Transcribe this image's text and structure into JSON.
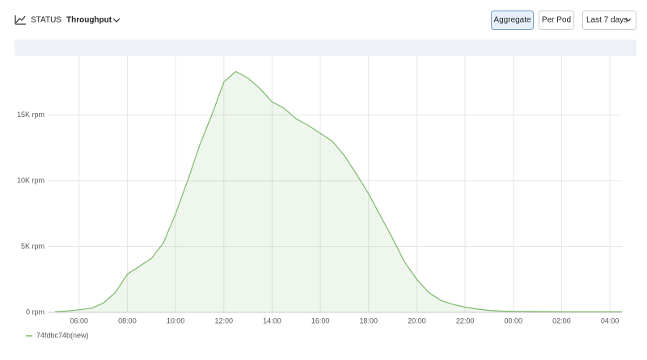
{
  "header": {
    "section": "STATUS",
    "metric": "Throughput",
    "buttons": [
      "Aggregate",
      "Per Pod"
    ],
    "range": "Last 7 days"
  },
  "chart_data": {
    "type": "area",
    "x": [
      5,
      5.5,
      6,
      6.5,
      7,
      7.5,
      8,
      8.5,
      9,
      9.5,
      10,
      10.5,
      11,
      11.5,
      12,
      12.5,
      13,
      13.5,
      14,
      14.5,
      15,
      15.5,
      16,
      16.5,
      17,
      17.5,
      18,
      18.5,
      19,
      19.5,
      20,
      20.5,
      21,
      21.5,
      22,
      22.5,
      23,
      23.5,
      24,
      24.5,
      25,
      25.5,
      26,
      26.5,
      27,
      27.5,
      28,
      28.5
    ],
    "series": [
      {
        "name": "74fdbc74b(new)",
        "color": "#7cb86a",
        "values": [
          50,
          100,
          200,
          300,
          700,
          1500,
          2900,
          3500,
          4100,
          5300,
          7500,
          10000,
          12700,
          15000,
          17500,
          18300,
          17800,
          17000,
          16000,
          15500,
          14700,
          14200,
          13600,
          13000,
          11900,
          10500,
          9000,
          7300,
          5600,
          3800,
          2500,
          1500,
          900,
          600,
          400,
          250,
          150,
          100,
          80,
          70,
          60,
          60,
          50,
          50,
          50,
          50,
          50,
          50
        ]
      }
    ],
    "xlim": [
      4.7,
      28.5
    ],
    "xticks": [
      {
        "value": 6,
        "label": "06:00"
      },
      {
        "value": 8,
        "label": "08:00"
      },
      {
        "value": 10,
        "label": "10:00"
      },
      {
        "value": 12,
        "label": "12:00"
      },
      {
        "value": 14,
        "label": "14:00"
      },
      {
        "value": 16,
        "label": "16:00"
      },
      {
        "value": 18,
        "label": "18:00"
      },
      {
        "value": 20,
        "label": "20:00"
      },
      {
        "value": 22,
        "label": "22:00"
      },
      {
        "value": 24,
        "label": "00:00"
      },
      {
        "value": 26,
        "label": "02:00"
      },
      {
        "value": 28,
        "label": "04:00"
      }
    ],
    "ylim": [
      0,
      19500
    ],
    "yticks": [
      {
        "value": 0,
        "label": "0 rpm"
      },
      {
        "value": 5000,
        "label": "5K rpm"
      },
      {
        "value": 10000,
        "label": "10K rpm"
      },
      {
        "value": 15000,
        "label": "15K rpm"
      }
    ],
    "grid": true
  }
}
